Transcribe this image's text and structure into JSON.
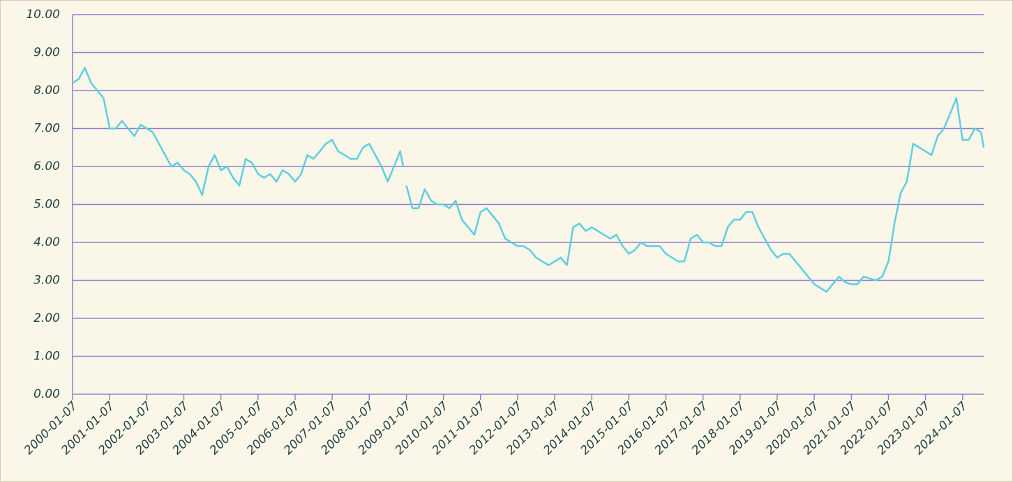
{
  "chart_data": {
    "type": "line",
    "x": [
      "2000-01-07",
      "2000-03-07",
      "2000-05-07",
      "2000-07-07",
      "2000-09-07",
      "2000-11-07",
      "2001-01-07",
      "2001-03-07",
      "2001-05-07",
      "2001-07-07",
      "2001-09-07",
      "2001-11-07",
      "2002-01-07",
      "2002-03-07",
      "2002-05-07",
      "2002-07-07",
      "2002-09-07",
      "2002-11-07",
      "2003-01-07",
      "2003-03-07",
      "2003-05-07",
      "2003-07-07",
      "2003-09-07",
      "2003-11-07",
      "2004-01-07",
      "2004-03-07",
      "2004-05-07",
      "2004-07-07",
      "2004-09-07",
      "2004-11-07",
      "2005-01-07",
      "2005-03-07",
      "2005-05-07",
      "2005-07-07",
      "2005-09-07",
      "2005-11-07",
      "2006-01-07",
      "2006-03-07",
      "2006-05-07",
      "2006-07-07",
      "2006-09-07",
      "2006-11-07",
      "2007-01-07",
      "2007-03-07",
      "2007-05-07",
      "2007-07-07",
      "2007-09-07",
      "2007-11-07",
      "2008-01-07",
      "2008-03-07",
      "2008-05-07",
      "2008-07-07",
      "2008-09-07",
      "2008-11-07",
      "2008-12-07",
      "2008-12-20",
      "2009-01-07",
      "2009-03-07",
      "2009-05-07",
      "2009-07-07",
      "2009-09-07",
      "2009-11-07",
      "2010-01-07",
      "2010-03-07",
      "2010-05-07",
      "2010-07-07",
      "2010-09-07",
      "2010-11-07",
      "2011-01-07",
      "2011-03-07",
      "2011-05-07",
      "2011-07-07",
      "2011-09-07",
      "2011-11-07",
      "2012-01-07",
      "2012-03-07",
      "2012-05-07",
      "2012-07-07",
      "2012-09-07",
      "2012-11-07",
      "2013-01-07",
      "2013-03-07",
      "2013-05-07",
      "2013-07-07",
      "2013-09-07",
      "2013-11-07",
      "2014-01-07",
      "2014-03-07",
      "2014-05-07",
      "2014-07-07",
      "2014-09-07",
      "2014-11-07",
      "2015-01-07",
      "2015-03-07",
      "2015-05-07",
      "2015-07-07",
      "2015-09-07",
      "2015-11-07",
      "2016-01-07",
      "2016-03-07",
      "2016-05-07",
      "2016-07-07",
      "2016-09-07",
      "2016-11-07",
      "2017-01-07",
      "2017-03-07",
      "2017-05-07",
      "2017-07-07",
      "2017-09-07",
      "2017-11-07",
      "2018-01-07",
      "2018-03-07",
      "2018-05-07",
      "2018-07-07",
      "2018-09-07",
      "2018-11-07",
      "2019-01-07",
      "2019-03-07",
      "2019-05-07",
      "2019-07-07",
      "2019-09-07",
      "2019-11-07",
      "2020-01-07",
      "2020-03-07",
      "2020-05-07",
      "2020-07-07",
      "2020-09-07",
      "2020-11-07",
      "2021-01-07",
      "2021-03-07",
      "2021-05-07",
      "2021-07-07",
      "2021-09-07",
      "2021-11-07",
      "2022-01-07",
      "2022-03-07",
      "2022-05-07",
      "2022-07-07",
      "2022-09-07",
      "2022-11-07",
      "2023-01-07",
      "2023-03-07",
      "2023-05-07",
      "2023-07-07",
      "2023-09-07",
      "2023-11-07",
      "2024-01-07",
      "2024-03-07",
      "2024-05-07",
      "2024-07-07",
      "2024-08-02"
    ],
    "values": [
      8.2,
      8.3,
      8.6,
      8.2,
      8.0,
      7.8,
      7.0,
      7.0,
      7.2,
      7.0,
      6.8,
      7.1,
      7.0,
      6.9,
      6.6,
      6.3,
      6.0,
      6.1,
      5.9,
      5.8,
      5.6,
      5.25,
      6.0,
      6.3,
      5.9,
      6.0,
      5.7,
      5.5,
      6.2,
      6.1,
      5.8,
      5.7,
      5.8,
      5.6,
      5.9,
      5.8,
      5.6,
      5.8,
      6.3,
      6.2,
      6.4,
      6.6,
      6.7,
      6.4,
      6.3,
      6.2,
      6.2,
      6.5,
      6.6,
      6.3,
      6.0,
      5.6,
      6.0,
      6.4,
      6.0,
      null,
      5.5,
      4.9,
      4.9,
      5.4,
      5.1,
      5.0,
      5.0,
      4.9,
      5.1,
      4.6,
      4.4,
      4.2,
      4.8,
      4.9,
      4.7,
      4.5,
      4.1,
      4.0,
      3.9,
      3.9,
      3.8,
      3.6,
      3.5,
      3.4,
      3.5,
      3.6,
      3.4,
      4.4,
      4.5,
      4.3,
      4.4,
      4.3,
      4.2,
      4.1,
      4.2,
      3.9,
      3.7,
      3.8,
      4.0,
      3.9,
      3.9,
      3.9,
      3.7,
      3.6,
      3.5,
      3.5,
      4.1,
      4.2,
      4.0,
      4.0,
      3.9,
      3.9,
      4.4,
      4.6,
      4.6,
      4.8,
      4.8,
      4.4,
      4.1,
      3.8,
      3.6,
      3.7,
      3.7,
      3.5,
      3.3,
      3.1,
      2.9,
      2.8,
      2.7,
      2.9,
      3.1,
      2.95,
      2.9,
      2.9,
      3.1,
      3.05,
      3.0,
      3.1,
      3.5,
      4.5,
      5.3,
      5.6,
      6.6,
      6.5,
      6.4,
      6.3,
      6.8,
      7.0,
      7.4,
      7.8,
      6.7,
      6.7,
      7.0,
      6.9,
      6.5
    ],
    "color": "#5ccfe2",
    "xlim": [
      "2000-01-07",
      "2024-08-02"
    ],
    "xticks": [
      "2000-01-07",
      "2001-01-07",
      "2002-01-07",
      "2003-01-07",
      "2004-01-07",
      "2005-01-07",
      "2006-01-07",
      "2007-01-07",
      "2008-01-07",
      "2009-01-07",
      "2010-01-07",
      "2011-01-07",
      "2012-01-07",
      "2013-01-07",
      "2014-01-07",
      "2015-01-07",
      "2016-01-07",
      "2017-01-07",
      "2018-01-07",
      "2019-01-07",
      "2020-01-07",
      "2021-01-07",
      "2022-01-07",
      "2023-01-07",
      "2024-01-07"
    ],
    "ylim": [
      0,
      10
    ],
    "yticks": [
      {
        "value": 0,
        "label": "0.00"
      },
      {
        "value": 1,
        "label": "1.00"
      },
      {
        "value": 2,
        "label": "2.00"
      },
      {
        "value": 3,
        "label": "3.00"
      },
      {
        "value": 4,
        "label": "4.00"
      },
      {
        "value": 5,
        "label": "5.00"
      },
      {
        "value": 6,
        "label": "6.00"
      },
      {
        "value": 7,
        "label": "7.00"
      },
      {
        "value": 8,
        "label": "8.00"
      },
      {
        "value": 9,
        "label": "9.00"
      },
      {
        "value": 10,
        "label": "10.00"
      }
    ],
    "grid": true
  }
}
